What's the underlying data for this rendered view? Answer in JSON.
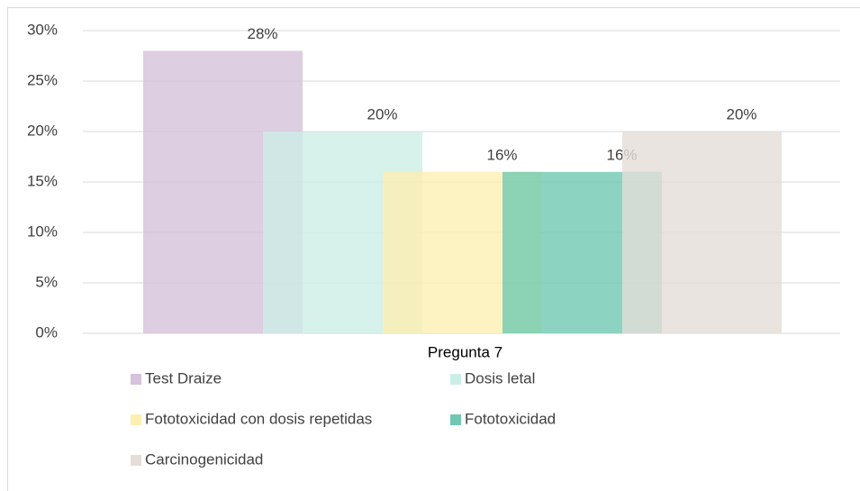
{
  "chart_data": {
    "type": "bar",
    "categories": [
      "Pregunta 7"
    ],
    "series": [
      {
        "name": "Test Draize",
        "color": "#d6c2da",
        "values": [
          28
        ],
        "value_labels": [
          "28%"
        ]
      },
      {
        "name": "Dosis letal",
        "color": "#cdeee6",
        "values": [
          20
        ],
        "value_labels": [
          "20%"
        ]
      },
      {
        "name": "Fototoxicidad con dosis repetidas",
        "color": "#fdefb2",
        "values": [
          16
        ],
        "value_labels": [
          "16%"
        ]
      },
      {
        "name": "Fototoxicidad",
        "color": "#6fc9b2",
        "values": [
          16
        ],
        "value_labels": [
          "16%"
        ]
      },
      {
        "name": "Carcinogenicidad",
        "color": "#e4ddd8",
        "values": [
          20
        ],
        "value_labels": [
          "20%"
        ]
      }
    ],
    "ylim": [
      0,
      30
    ],
    "yticks": [
      {
        "value": 0,
        "label": "0%"
      },
      {
        "value": 5,
        "label": "5%"
      },
      {
        "value": 10,
        "label": "10%"
      },
      {
        "value": 15,
        "label": "15%"
      },
      {
        "value": 20,
        "label": "20%"
      },
      {
        "value": 25,
        "label": "25%"
      },
      {
        "value": 30,
        "label": "30%"
      }
    ],
    "grid": true
  }
}
